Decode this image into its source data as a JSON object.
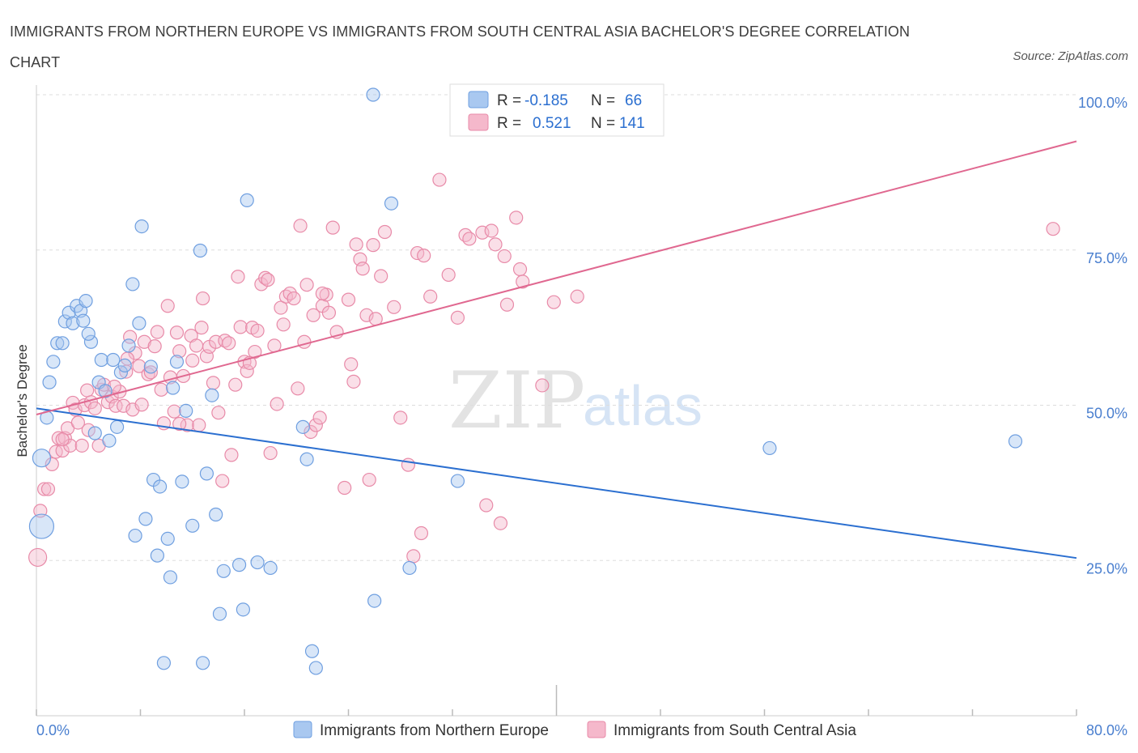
{
  "header": {
    "title": "IMMIGRANTS FROM NORTHERN EUROPE VS IMMIGRANTS FROM SOUTH CENTRAL ASIA BACHELOR'S DEGREE CORRELATION CHART",
    "source": "Source: ZipAtlas.com"
  },
  "watermark": {
    "zip": "ZIP",
    "atlas": "atlas"
  },
  "colors": {
    "blue_fill": "#a9c8f0",
    "blue_stroke": "#6f9fe0",
    "blue_line": "#2b6fd0",
    "pink_fill": "#f5b8cb",
    "pink_stroke": "#e88aa8",
    "pink_line": "#e06890",
    "grid": "#dddddd",
    "tick_text": "#4a7fcf"
  },
  "legend": {
    "r_label": "R =",
    "n_label": "N =",
    "series": [
      {
        "r": "-0.185",
        "n": "66"
      },
      {
        "r": "0.521",
        "n": "141"
      }
    ]
  },
  "chart_data": {
    "type": "scatter",
    "title": "IMMIGRANTS FROM NORTHERN EUROPE VS IMMIGRANTS FROM SOUTH CENTRAL ASIA BACHELOR'S DEGREE CORRELATION CHART",
    "xlabel": "",
    "ylabel": "Bachelor's Degree",
    "xlim": [
      0,
      80
    ],
    "ylim": [
      0,
      100
    ],
    "x_tick_labels": [
      "0.0%",
      "80.0%"
    ],
    "y_ticks": [
      25,
      50,
      75,
      100
    ],
    "y_tick_labels": [
      "25.0%",
      "50.0%",
      "75.0%",
      "100.0%"
    ],
    "grid": true,
    "legend_position": "top-center",
    "series": [
      {
        "name": "Immigrants from Northern Europe",
        "color": "blue",
        "r": -0.185,
        "n": 66,
        "trend": {
          "x": [
            0,
            80
          ],
          "y": [
            49.5,
            25.4
          ]
        },
        "points": [
          [
            0.4,
            41.5,
            2
          ],
          [
            0.4,
            30.5,
            3
          ],
          [
            0.8,
            48,
            1
          ],
          [
            1.0,
            53.7,
            1
          ],
          [
            1.3,
            57,
            1
          ],
          [
            1.6,
            60,
            1
          ],
          [
            2.0,
            60,
            1
          ],
          [
            2.2,
            63.5,
            1
          ],
          [
            2.5,
            64.9,
            1
          ],
          [
            2.8,
            63.2,
            1
          ],
          [
            3.1,
            66,
            1
          ],
          [
            3.4,
            65.2,
            1
          ],
          [
            3.6,
            63.6,
            1
          ],
          [
            3.8,
            66.8,
            1
          ],
          [
            4.2,
            60.2,
            1
          ],
          [
            4.5,
            45.5,
            1
          ],
          [
            4.8,
            53.7,
            1
          ],
          [
            5.0,
            57.3,
            1
          ],
          [
            5.3,
            52.3,
            1
          ],
          [
            5.6,
            44.3,
            1
          ],
          [
            5.9,
            57.3,
            1
          ],
          [
            6.2,
            46.5,
            1
          ],
          [
            6.5,
            55.3,
            1
          ],
          [
            6.8,
            56.4,
            1
          ],
          [
            7.1,
            59.6,
            1
          ],
          [
            7.4,
            69.5,
            1
          ],
          [
            7.6,
            29,
            1
          ],
          [
            7.9,
            63.2,
            1
          ],
          [
            8.1,
            78.8,
            1
          ],
          [
            8.4,
            31.7,
            1
          ],
          [
            8.8,
            56.2,
            1
          ],
          [
            9.0,
            38,
            1
          ],
          [
            9.3,
            25.8,
            1
          ],
          [
            9.5,
            36.9,
            1
          ],
          [
            9.8,
            8.5,
            1
          ],
          [
            10.1,
            28.5,
            1
          ],
          [
            10.3,
            22.3,
            1
          ],
          [
            10.8,
            57,
            1
          ],
          [
            11.2,
            37.7,
            1
          ],
          [
            11.5,
            49.1,
            1
          ],
          [
            12.0,
            30.6,
            1
          ],
          [
            12.6,
            74.9,
            1
          ],
          [
            12.8,
            8.5,
            1
          ],
          [
            13.1,
            39,
            1
          ],
          [
            13.5,
            51.6,
            1
          ],
          [
            13.8,
            32.4,
            1
          ],
          [
            14.1,
            16.4,
            1
          ],
          [
            14.4,
            23.3,
            1
          ],
          [
            15.6,
            24.3,
            1
          ],
          [
            15.9,
            17.1,
            1
          ],
          [
            16.2,
            83,
            1
          ],
          [
            17.0,
            24.7,
            1
          ],
          [
            18.0,
            23.8,
            1
          ],
          [
            20.5,
            46.5,
            1
          ],
          [
            20.8,
            41.3,
            1
          ],
          [
            21.2,
            10.4,
            1
          ],
          [
            21.5,
            7.7,
            1
          ],
          [
            25.9,
            100,
            1
          ],
          [
            26.0,
            18.5,
            1
          ],
          [
            27.3,
            82.5,
            1
          ],
          [
            28.7,
            23.8,
            1
          ],
          [
            32.4,
            37.8,
            1
          ],
          [
            56.4,
            43.1,
            1
          ],
          [
            75.3,
            44.2,
            1
          ],
          [
            10.5,
            52.8,
            1
          ],
          [
            4.0,
            61.5,
            1
          ]
        ]
      },
      {
        "name": "Immigrants from South Central Asia",
        "color": "pink",
        "r": 0.521,
        "n": 141,
        "trend": {
          "x": [
            0,
            80
          ],
          "y": [
            48.5,
            92.5
          ]
        },
        "points": [
          [
            0.1,
            25.5,
            2
          ],
          [
            0.3,
            33,
            1
          ],
          [
            0.6,
            36.5,
            1
          ],
          [
            0.9,
            36.5,
            1
          ],
          [
            1.2,
            40.5,
            1
          ],
          [
            1.5,
            42.5,
            1
          ],
          [
            1.7,
            44.7,
            1
          ],
          [
            2.0,
            42.7,
            1
          ],
          [
            2.2,
            44.7,
            1
          ],
          [
            2.4,
            46.3,
            1
          ],
          [
            2.6,
            43.5,
            1
          ],
          [
            2.8,
            50.4,
            1
          ],
          [
            3.0,
            49.3,
            1
          ],
          [
            3.2,
            47.2,
            1
          ],
          [
            3.5,
            43.5,
            1
          ],
          [
            3.7,
            50,
            1
          ],
          [
            3.9,
            52.4,
            1
          ],
          [
            4.2,
            50.5,
            1
          ],
          [
            4.5,
            49.5,
            1
          ],
          [
            4.8,
            43.5,
            1
          ],
          [
            5.0,
            52.5,
            1
          ],
          [
            5.2,
            53.3,
            1
          ],
          [
            5.5,
            50.5,
            1
          ],
          [
            5.8,
            51.4,
            1
          ],
          [
            6.1,
            49.9,
            1
          ],
          [
            6.4,
            52.2,
            1
          ],
          [
            6.7,
            49.9,
            1
          ],
          [
            6.9,
            55.4,
            1
          ],
          [
            7.2,
            61,
            1
          ],
          [
            7.4,
            49.3,
            1
          ],
          [
            7.6,
            58.4,
            1
          ],
          [
            7.9,
            56.3,
            1
          ],
          [
            8.1,
            50.1,
            1
          ],
          [
            8.3,
            60.2,
            1
          ],
          [
            8.6,
            55,
            1
          ],
          [
            8.8,
            55.3,
            1
          ],
          [
            9.1,
            59.5,
            1
          ],
          [
            9.3,
            61.8,
            1
          ],
          [
            9.6,
            52.5,
            1
          ],
          [
            9.8,
            47.1,
            1
          ],
          [
            10.1,
            66,
            1
          ],
          [
            10.3,
            54.5,
            1
          ],
          [
            10.6,
            49,
            1
          ],
          [
            10.8,
            61.7,
            1
          ],
          [
            11.0,
            58.7,
            1
          ],
          [
            11.3,
            54.7,
            1
          ],
          [
            11.6,
            46.8,
            1
          ],
          [
            11.9,
            61.2,
            1
          ],
          [
            12.0,
            57.2,
            1
          ],
          [
            12.3,
            59.6,
            1
          ],
          [
            12.5,
            46.8,
            1
          ],
          [
            12.7,
            62.5,
            1
          ],
          [
            12.8,
            67.2,
            1
          ],
          [
            13.1,
            57.9,
            1
          ],
          [
            13.3,
            59.4,
            1
          ],
          [
            13.6,
            53.6,
            1
          ],
          [
            13.8,
            60.2,
            1
          ],
          [
            14.0,
            48.8,
            1
          ],
          [
            14.3,
            37.8,
            1
          ],
          [
            14.5,
            60.4,
            1
          ],
          [
            14.8,
            60,
            1
          ],
          [
            15.0,
            42,
            1
          ],
          [
            15.3,
            53.3,
            1
          ],
          [
            15.5,
            70.7,
            1
          ],
          [
            15.7,
            62.6,
            1
          ],
          [
            16.0,
            57,
            1
          ],
          [
            16.2,
            55.5,
            1
          ],
          [
            16.6,
            62.5,
            1
          ],
          [
            16.8,
            58.6,
            1
          ],
          [
            17.0,
            62,
            1
          ],
          [
            17.3,
            69.5,
            1
          ],
          [
            17.6,
            70.5,
            1
          ],
          [
            17.8,
            70.2,
            1
          ],
          [
            18.0,
            42.3,
            1
          ],
          [
            18.3,
            59.6,
            1
          ],
          [
            18.5,
            50.2,
            1
          ],
          [
            18.8,
            65.7,
            1
          ],
          [
            19.2,
            67.5,
            1
          ],
          [
            19.5,
            68,
            1
          ],
          [
            19.8,
            67.2,
            1
          ],
          [
            20.1,
            52.7,
            1
          ],
          [
            20.3,
            78.9,
            1
          ],
          [
            20.6,
            60.2,
            1
          ],
          [
            20.8,
            69.4,
            1
          ],
          [
            21.1,
            45.7,
            1
          ],
          [
            21.3,
            64.5,
            1
          ],
          [
            21.5,
            46.8,
            1
          ],
          [
            21.8,
            48,
            1
          ],
          [
            22.0,
            66,
            1
          ],
          [
            22.3,
            67.8,
            1
          ],
          [
            22.5,
            64.9,
            1
          ],
          [
            22.8,
            78.6,
            1
          ],
          [
            23.1,
            61.8,
            1
          ],
          [
            23.7,
            36.7,
            1
          ],
          [
            24.0,
            67,
            1
          ],
          [
            24.2,
            56.6,
            1
          ],
          [
            24.4,
            53.8,
            1
          ],
          [
            24.6,
            75.9,
            1
          ],
          [
            24.9,
            73.5,
            1
          ],
          [
            25.1,
            72,
            1
          ],
          [
            25.4,
            64.5,
            1
          ],
          [
            25.6,
            38,
            1
          ],
          [
            25.9,
            75.8,
            1
          ],
          [
            26.1,
            63.9,
            1
          ],
          [
            26.5,
            70.8,
            1
          ],
          [
            26.8,
            77.9,
            1
          ],
          [
            27.5,
            65.8,
            1
          ],
          [
            28.0,
            48,
            1
          ],
          [
            28.6,
            40.4,
            1
          ],
          [
            29.0,
            25.7,
            1
          ],
          [
            29.3,
            74.5,
            1
          ],
          [
            29.6,
            29.4,
            1
          ],
          [
            29.8,
            74.1,
            1
          ],
          [
            30.3,
            67.5,
            1
          ],
          [
            31.0,
            86.3,
            1
          ],
          [
            31.7,
            71,
            1
          ],
          [
            32.4,
            64.1,
            1
          ],
          [
            33.0,
            77.4,
            1
          ],
          [
            33.3,
            76.8,
            1
          ],
          [
            34.3,
            77.8,
            1
          ],
          [
            34.6,
            33.9,
            1
          ],
          [
            35.0,
            78.1,
            1
          ],
          [
            35.3,
            75.9,
            1
          ],
          [
            35.7,
            31,
            1
          ],
          [
            36.0,
            74,
            1
          ],
          [
            36.2,
            66.2,
            1
          ],
          [
            36.9,
            80.2,
            1
          ],
          [
            37.2,
            71.9,
            1
          ],
          [
            37.4,
            69.9,
            1
          ],
          [
            38.9,
            53.2,
            1
          ],
          [
            39.8,
            66.6,
            1
          ],
          [
            41.6,
            67.5,
            1
          ],
          [
            78.2,
            78.4,
            1
          ],
          [
            2.0,
            44.5,
            1
          ],
          [
            6.0,
            53.0,
            1
          ],
          [
            7.0,
            57.5,
            1
          ],
          [
            11.0,
            47.0,
            1
          ],
          [
            16.4,
            56.8,
            1
          ],
          [
            19.0,
            63.0,
            1
          ],
          [
            22.0,
            68.0,
            1
          ],
          [
            4.0,
            46.0,
            1
          ]
        ]
      }
    ]
  },
  "bottom_legend": {
    "items": [
      {
        "label": "Immigrants from Northern Europe"
      },
      {
        "label": "Immigrants from South Central Asia"
      }
    ]
  }
}
